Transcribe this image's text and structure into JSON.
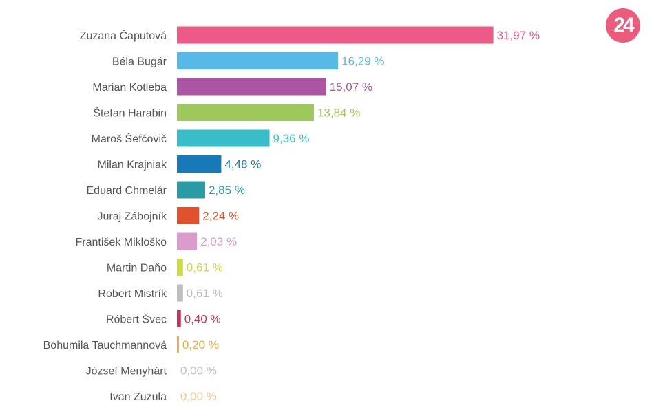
{
  "logo": {
    "text": "24",
    "color": "#ec5b7c"
  },
  "chart_data": {
    "type": "bar",
    "orientation": "horizontal",
    "categories": [
      "Zuzana Čaputová",
      "Béla Bugár",
      "Marian Kotleba",
      "Štefan Harabin",
      "Maroš Šefčovič",
      "Milan Krajniak",
      "Eduard Chmelár",
      "Juraj Zábojník",
      "František Mikloško",
      "Martin Daňo",
      "Robert Mistrík",
      "Róbert Švec",
      "Bohumila Tauchmannová",
      "József Menyhárt",
      "Ivan Zuzula"
    ],
    "values": [
      31.97,
      16.29,
      15.07,
      13.84,
      9.36,
      4.48,
      2.85,
      2.24,
      2.03,
      0.61,
      0.61,
      0.4,
      0.2,
      0.0,
      0.0
    ],
    "value_labels": [
      "31,97 %",
      "16,29 %",
      "15,07 %",
      "13,84 %",
      "9,36 %",
      "4,48 %",
      "2,85 %",
      "2,24 %",
      "2,03 %",
      "0,61 %",
      "0,61 %",
      "0,40 %",
      "0,20 %",
      "0,00 %",
      "0,00 %"
    ],
    "colors": [
      "#ec5b87",
      "#56b9e8",
      "#ab55a3",
      "#9dc85a",
      "#39bdc8",
      "#1878b8",
      "#2a9aa5",
      "#e0522c",
      "#d99ccc",
      "#cfdb3c",
      "#bdbdbd",
      "#c1345f",
      "#f0a849",
      "#c0c0c0",
      "#f5c690"
    ],
    "label_color": "#555555",
    "xlim": [
      0,
      32
    ],
    "grid": false
  }
}
